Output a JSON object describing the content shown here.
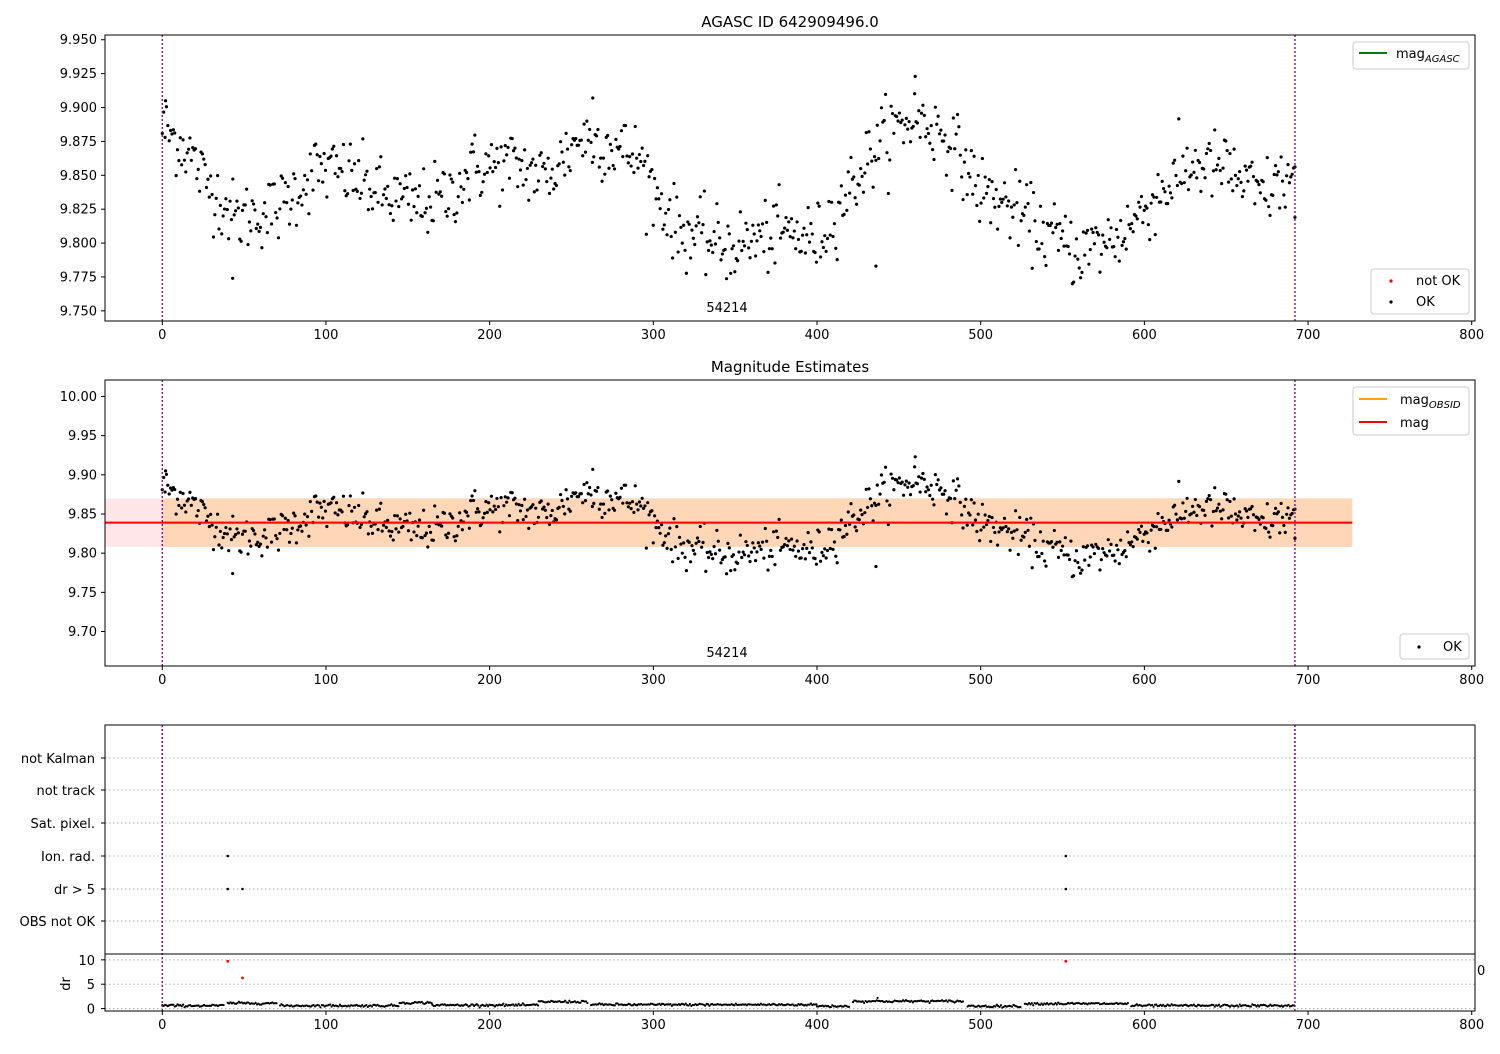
{
  "chart_data": [
    {
      "type": "scatter",
      "title": "AGASC ID 642909496.0",
      "xlim": [
        -35,
        802
      ],
      "ylim": [
        9.7425,
        9.9535
      ],
      "xticks": [
        0,
        100,
        200,
        300,
        400,
        500,
        600,
        700,
        800
      ],
      "yticks": [
        9.75,
        9.775,
        9.8,
        9.825,
        9.85,
        9.875,
        9.9,
        9.925,
        9.95
      ],
      "ytick_labels": [
        "9.750",
        "9.775",
        "9.800",
        "9.825",
        "9.850",
        "9.875",
        "9.900",
        "9.925",
        "9.950"
      ],
      "obsid_boundaries": [
        0,
        692
      ],
      "obsid_label": "54214",
      "obsid_label_x": 345,
      "legend_top": {
        "position": "upper right",
        "entries": [
          {
            "label": "mag",
            "sub": "AGASC",
            "color": "#008000"
          }
        ]
      },
      "legend_bottom": {
        "position": "lower right",
        "entries": [
          {
            "label": "not OK",
            "color": "#ff0000"
          },
          {
            "label": "OK",
            "color": "#000000"
          }
        ]
      },
      "series": [
        {
          "name": "OK",
          "color": "#000000"
        }
      ]
    },
    {
      "type": "scatter",
      "title": "Magnitude Estimates",
      "xlim": [
        -35,
        802
      ],
      "ylim": [
        9.656,
        10.021
      ],
      "xticks": [
        0,
        100,
        200,
        300,
        400,
        500,
        600,
        700,
        800
      ],
      "yticks": [
        9.7,
        9.75,
        9.8,
        9.85,
        9.9,
        9.95,
        10.0
      ],
      "ytick_labels": [
        "9.70",
        "9.75",
        "9.80",
        "9.85",
        "9.90",
        "9.95",
        "10.00"
      ],
      "obsid_boundaries": [
        0,
        692
      ],
      "obsid_label": "54214",
      "obsid_label_x": 345,
      "mag_obsid": {
        "value": 9.839,
        "x_range": [
          0,
          727
        ],
        "band": [
          9.808,
          9.87
        ],
        "color": "#ffa500"
      },
      "mag": {
        "value": 9.839,
        "x_range": [
          -35,
          727
        ],
        "band": [
          9.808,
          9.87
        ],
        "color": "#ff0000"
      },
      "legend_top": {
        "position": "upper right",
        "entries": [
          {
            "label": "mag",
            "sub": "OBSID",
            "color": "#ffa500"
          },
          {
            "label": "mag",
            "sub": "",
            "color": "#ff0000"
          }
        ]
      },
      "legend_bottom": {
        "position": "lower right",
        "entries": [
          {
            "label": "OK",
            "color": "#000000"
          }
        ]
      },
      "series": [
        {
          "name": "OK",
          "color": "#000000"
        }
      ]
    },
    {
      "type": "scatter",
      "title": "",
      "xlim": [
        -35,
        802
      ],
      "categories": [
        "not Kalman",
        "not track",
        "Sat. pixel.",
        "Ion. rad.",
        "dr > 5",
        "OBS not OK"
      ],
      "flags": {
        "not Kalman": [],
        "not track": [],
        "Sat. pixel.": [],
        "Ion. rad.": [
          40,
          552
        ],
        "dr > 5": [
          40,
          49,
          552
        ],
        "OBS not OK": []
      },
      "obsid_boundaries": [
        0,
        692
      ]
    },
    {
      "type": "scatter",
      "title": "",
      "ylabel": "dr",
      "xlim": [
        -35,
        802
      ],
      "ylim": [
        -0.5,
        11.2
      ],
      "xticks": [
        0,
        100,
        200,
        300,
        400,
        500,
        600,
        700,
        800
      ],
      "yticks": [
        0,
        5,
        10
      ],
      "ytick_labels": [
        "0",
        "5",
        "10"
      ],
      "extra_label": "0",
      "obsid_boundaries": [
        0,
        692
      ],
      "not_ok_points": [
        {
          "x": 40,
          "y": 9.7
        },
        {
          "x": 49,
          "y": 6.3
        },
        {
          "x": 552,
          "y": 9.7
        }
      ],
      "ok_segments_mean": [
        {
          "x": [
            0,
            38
          ],
          "y": 0.6
        },
        {
          "x": [
            40,
            70
          ],
          "y": 1.1
        },
        {
          "x": [
            72,
            145
          ],
          "y": 0.6
        },
        {
          "x": [
            145,
            165
          ],
          "y": 1.2
        },
        {
          "x": [
            165,
            230
          ],
          "y": 0.7
        },
        {
          "x": [
            230,
            260
          ],
          "y": 1.4
        },
        {
          "x": [
            262,
            400
          ],
          "y": 0.8
        },
        {
          "x": [
            400,
            420
          ],
          "y": 0.5
        },
        {
          "x": [
            422,
            490
          ],
          "y": 1.5
        },
        {
          "x": [
            492,
            525
          ],
          "y": 0.5
        },
        {
          "x": [
            527,
            590
          ],
          "y": 1.0
        },
        {
          "x": [
            592,
            692
          ],
          "y": 0.6
        }
      ]
    }
  ]
}
